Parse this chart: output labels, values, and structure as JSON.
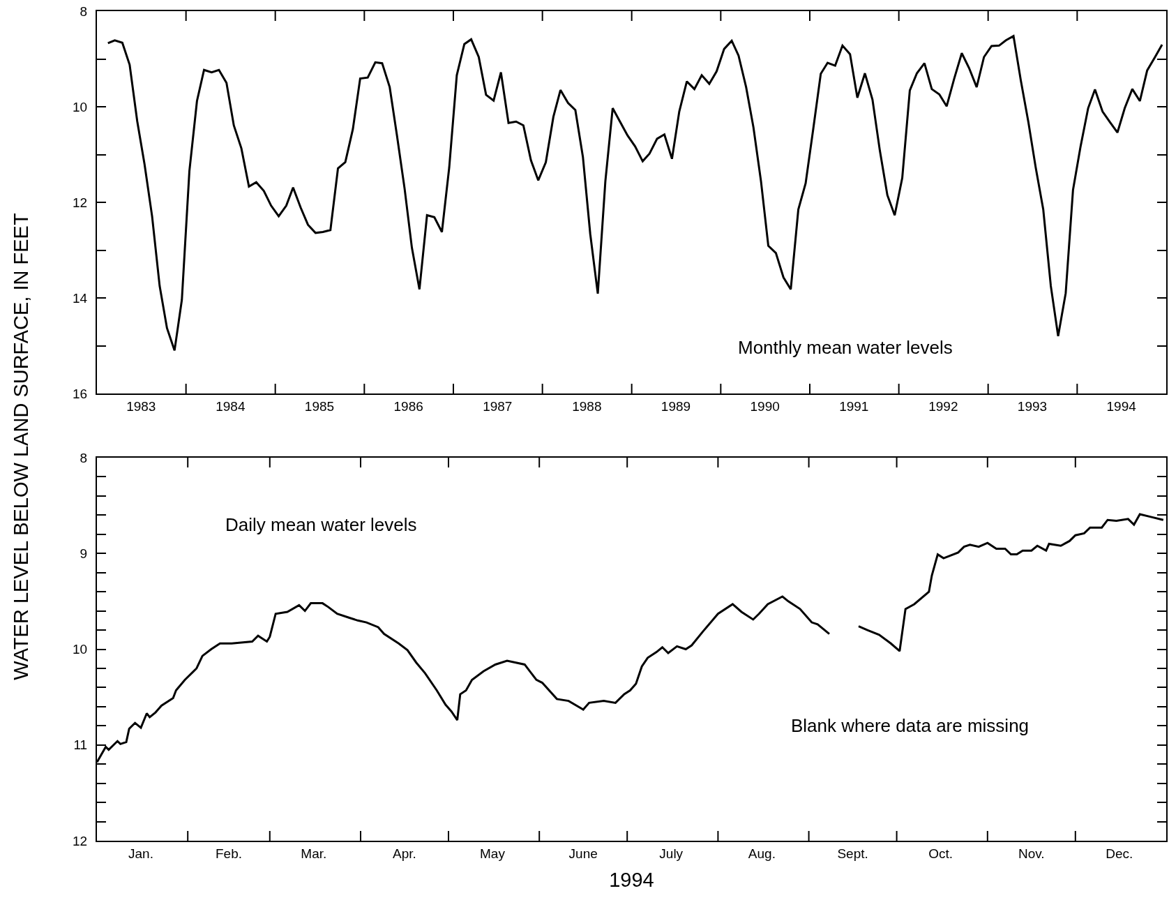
{
  "chart_data": [
    {
      "type": "line",
      "ylabel": "WATER LEVEL BELOW LAND SURFACE, IN FEET",
      "annotations": [
        "Monthly mean water levels"
      ],
      "line_style": "solid",
      "xlim": [
        "1983-01-01",
        "1995-01-01"
      ],
      "xticks": [
        {
          "value": "1984-01-01",
          "label": null
        },
        {
          "value": "1985-01-01",
          "label": null
        },
        {
          "value": "1986-01-01",
          "label": null
        },
        {
          "value": "1987-01-01",
          "label": null
        },
        {
          "value": "1988-01-01",
          "label": null
        },
        {
          "value": "1989-01-01",
          "label": null
        },
        {
          "value": "1990-01-01",
          "label": null
        },
        {
          "value": "1991-01-01",
          "label": null
        },
        {
          "value": "1992-01-01",
          "label": null
        },
        {
          "value": "1993-01-01",
          "label": null
        },
        {
          "value": "1994-01-01",
          "label": null
        },
        {
          "value": "1983-07-01",
          "label": "1983"
        },
        {
          "value": "1984-07-01",
          "label": "1984"
        },
        {
          "value": "1985-07-01",
          "label": "1985"
        },
        {
          "value": "1986-07-01",
          "label": "1986"
        },
        {
          "value": "1987-07-01",
          "label": "1987"
        },
        {
          "value": "1988-07-01",
          "label": "1988"
        },
        {
          "value": "1989-07-01",
          "label": "1989"
        },
        {
          "value": "1990-07-01",
          "label": "1990"
        },
        {
          "value": "1991-07-01",
          "label": "1991"
        },
        {
          "value": "1992-07-01",
          "label": "1992"
        },
        {
          "value": "1993-07-01",
          "label": "1993"
        },
        {
          "value": "1994-07-01",
          "label": "1994"
        }
      ],
      "ylim": [
        16,
        8
      ],
      "yticks": [
        8,
        {
          "value": 9,
          "label": null
        },
        10,
        {
          "value": 11,
          "label": null
        },
        12,
        {
          "value": 13,
          "label": null
        },
        14,
        {
          "value": 15,
          "label": null
        },
        16
      ],
      "x": [
        "1983-02-15",
        "1983-03-15",
        "1983-04-15",
        "1983-05-15",
        "1983-06-15",
        "1983-07-15",
        "1983-08-15",
        "1983-09-15",
        "1983-10-15",
        "1983-11-15",
        "1983-12-15",
        "1984-01-15",
        "1984-02-15",
        "1984-03-15",
        "1984-04-15",
        "1984-05-15",
        "1984-06-15",
        "1984-07-15",
        "1984-08-15",
        "1984-09-15",
        "1984-10-15",
        "1984-11-15",
        "1984-12-15",
        "1985-01-15",
        "1985-02-15",
        "1985-03-15",
        "1985-04-15",
        "1985-05-15",
        "1985-06-15",
        "1985-07-15",
        "1985-08-15",
        "1985-09-15",
        "1985-10-15",
        "1985-11-15",
        "1985-12-15",
        "1986-01-15",
        "1986-02-15",
        "1986-03-15",
        "1986-04-15",
        "1986-05-15",
        "1986-06-15",
        "1986-07-15",
        "1986-08-15",
        "1986-09-15",
        "1986-10-15",
        "1986-11-15",
        "1986-12-15",
        "1987-01-15",
        "1987-02-15",
        "1987-03-15",
        "1987-04-15",
        "1987-05-15",
        "1987-06-15",
        "1987-07-15",
        "1987-08-15",
        "1987-09-15",
        "1987-10-15",
        "1987-11-15",
        "1987-12-15",
        "1988-01-15",
        "1988-02-15",
        "1988-03-15",
        "1988-04-15",
        "1988-05-15",
        "1988-06-15",
        "1988-07-15",
        "1988-08-15",
        "1988-09-15",
        "1988-10-15",
        "1988-11-15",
        "1988-12-15",
        "1989-01-15",
        "1989-02-15",
        "1989-03-15",
        "1989-04-15",
        "1989-05-15",
        "1989-06-15",
        "1989-07-15",
        "1989-08-15",
        "1989-09-15",
        "1989-10-15",
        "1989-11-15",
        "1989-12-15",
        "1990-01-15",
        "1990-02-15",
        "1990-03-15",
        "1990-04-15",
        "1990-05-15",
        "1990-06-15",
        "1990-07-15",
        "1990-08-15",
        "1990-09-15",
        "1990-10-15",
        "1990-11-15",
        "1990-12-15",
        "1991-01-15",
        "1991-02-15",
        "1991-03-15",
        "1991-04-15",
        "1991-05-15",
        "1991-06-15",
        "1991-07-15",
        "1991-08-15",
        "1991-09-15",
        "1991-10-15",
        "1991-11-15",
        "1991-12-15",
        "1992-01-15",
        "1992-02-15",
        "1992-03-15",
        "1992-04-15",
        "1992-05-15",
        "1992-06-15",
        "1992-07-15",
        "1992-08-15",
        "1992-09-15",
        "1992-10-15",
        "1992-11-15",
        "1992-12-15",
        "1993-01-15",
        "1993-02-15",
        "1993-03-15",
        "1993-04-15",
        "1993-05-15",
        "1993-06-15",
        "1993-07-15",
        "1993-08-15",
        "1993-09-15",
        "1993-10-15",
        "1993-11-15",
        "1993-12-15",
        "1994-01-15",
        "1994-02-15",
        "1994-03-15",
        "1994-04-15",
        "1994-05-15",
        "1994-06-15",
        "1994-07-15",
        "1994-08-15",
        "1994-09-15",
        "1994-10-15",
        "1994-11-15",
        "1994-12-15"
      ],
      "series": [
        {
          "color": "#000000",
          "values": [
            8.67,
            8.61,
            8.66,
            9.12,
            10.3,
            11.2,
            12.29,
            13.75,
            14.63,
            15.1,
            14.04,
            11.34,
            9.88,
            9.23,
            9.28,
            9.23,
            9.5,
            10.39,
            10.87,
            11.67,
            11.58,
            11.76,
            12.07,
            12.29,
            12.07,
            11.69,
            12.11,
            12.47,
            12.64,
            12.62,
            12.58,
            11.29,
            11.16,
            10.47,
            9.41,
            9.39,
            9.07,
            9.09,
            9.59,
            10.61,
            11.71,
            12.95,
            13.82,
            12.27,
            12.31,
            12.62,
            11.27,
            9.34,
            8.69,
            8.59,
            8.96,
            9.75,
            9.87,
            9.28,
            10.34,
            10.31,
            10.39,
            11.12,
            11.54,
            11.16,
            10.21,
            9.65,
            9.92,
            10.07,
            11.05,
            12.66,
            13.91,
            11.56,
            10.03,
            10.32,
            10.6,
            10.83,
            11.14,
            10.98,
            10.67,
            10.58,
            11.09,
            10.1,
            9.47,
            9.63,
            9.34,
            9.52,
            9.26,
            8.79,
            8.62,
            8.93,
            9.59,
            10.43,
            11.56,
            12.91,
            13.06,
            13.57,
            13.82,
            12.15,
            11.6,
            10.47,
            9.31,
            9.08,
            9.14,
            8.72,
            8.9,
            9.81,
            9.3,
            9.85,
            10.91,
            11.85,
            12.27,
            11.49,
            9.66,
            9.3,
            9.09,
            9.63,
            9.74,
            9.99,
            9.41,
            8.88,
            9.19,
            9.59,
            8.96,
            8.73,
            8.72,
            8.61,
            8.52,
            9.45,
            10.32,
            11.27,
            12.15,
            13.75,
            14.8,
            13.9,
            11.74,
            10.83,
            10.03,
            9.64,
            10.1,
            10.32,
            10.54,
            10.03,
            9.63,
            9.88,
            9.24,
            8.97,
            8.7
          ]
        }
      ]
    },
    {
      "type": "line",
      "xlabel": "1994",
      "annotations": [
        "Daily mean water levels",
        "Blank where data are missing"
      ],
      "line_style": "solid",
      "xlim": [
        "1994-01-01",
        "1995-01-01"
      ],
      "xticks": [
        {
          "value": "1994-02-01",
          "label": null
        },
        {
          "value": "1994-03-01",
          "label": null
        },
        {
          "value": "1994-04-01",
          "label": null
        },
        {
          "value": "1994-05-01",
          "label": null
        },
        {
          "value": "1994-06-01",
          "label": null
        },
        {
          "value": "1994-07-01",
          "label": null
        },
        {
          "value": "1994-08-01",
          "label": null
        },
        {
          "value": "1994-09-01",
          "label": null
        },
        {
          "value": "1994-10-01",
          "label": null
        },
        {
          "value": "1994-11-01",
          "label": null
        },
        {
          "value": "1994-12-01",
          "label": null
        },
        {
          "value": "1994-01-16",
          "label": "Jan."
        },
        {
          "value": "1994-02-15",
          "label": "Feb."
        },
        {
          "value": "1994-03-16",
          "label": "Mar."
        },
        {
          "value": "1994-04-16",
          "label": "Apr."
        },
        {
          "value": "1994-05-16",
          "label": "May"
        },
        {
          "value": "1994-06-16",
          "label": "June"
        },
        {
          "value": "1994-07-16",
          "label": "July"
        },
        {
          "value": "1994-08-16",
          "label": "Aug."
        },
        {
          "value": "1994-09-16",
          "label": "Sept."
        },
        {
          "value": "1994-10-16",
          "label": "Oct."
        },
        {
          "value": "1994-11-16",
          "label": "Nov."
        },
        {
          "value": "1994-12-16",
          "label": "Dec."
        }
      ],
      "ylim": [
        12,
        8
      ],
      "yticks": [
        8,
        {
          "value": 8.2,
          "label": null
        },
        {
          "value": 8.4,
          "label": null
        },
        {
          "value": 8.6,
          "label": null
        },
        {
          "value": 8.8,
          "label": null
        },
        9,
        {
          "value": 9.2,
          "label": null
        },
        {
          "value": 9.4,
          "label": null
        },
        {
          "value": 9.6,
          "label": null
        },
        {
          "value": 9.8,
          "label": null
        },
        10,
        {
          "value": 10.2,
          "label": null
        },
        {
          "value": 10.4,
          "label": null
        },
        {
          "value": 10.6,
          "label": null
        },
        {
          "value": 10.8,
          "label": null
        },
        11,
        {
          "value": 11.2,
          "label": null
        },
        {
          "value": 11.4,
          "label": null
        },
        {
          "value": 11.6,
          "label": null
        },
        {
          "value": 11.8,
          "label": null
        },
        12
      ],
      "x": [
        "1994-01-01",
        "1994-01-04",
        "1994-01-05",
        "1994-01-08",
        "1994-01-09",
        "1994-01-11",
        "1994-01-12",
        "1994-01-14",
        "1994-01-16",
        "1994-01-18",
        "1994-01-19",
        "1994-01-21",
        "1994-01-23",
        "1994-01-27",
        "1994-01-28",
        "1994-01-31",
        "1994-02-03",
        "1994-02-04",
        "1994-02-06",
        "1994-02-09",
        "1994-02-12",
        "1994-02-16",
        "1994-02-23",
        "1994-02-25",
        "1994-02-26",
        "1994-02-28",
        "1994-03-01",
        "1994-03-03",
        "1994-03-07",
        "1994-03-11",
        "1994-03-13",
        "1994-03-15",
        "1994-03-19",
        "1994-03-21",
        "1994-03-24",
        "1994-03-28",
        "1994-03-31",
        "1994-04-03",
        "1994-04-07",
        "1994-04-09",
        "1994-04-14",
        "1994-04-17",
        "1994-04-20",
        "1994-04-23",
        "1994-04-27",
        "1994-04-30",
        "1994-05-02",
        "1994-05-04",
        "1994-05-05",
        "1994-05-07",
        "1994-05-09",
        "1994-05-13",
        "1994-05-17",
        "1994-05-21",
        "1994-05-27",
        "1994-05-31",
        "1994-06-02",
        "1994-06-07",
        "1994-06-11",
        "1994-06-16",
        "1994-06-18",
        "1994-06-23",
        "1994-06-27",
        "1994-06-30",
        "1994-07-02",
        "1994-07-04",
        "1994-07-06",
        "1994-07-08",
        "1994-07-11",
        "1994-07-13",
        "1994-07-15",
        "1994-07-18",
        "1994-07-21",
        "1994-07-23",
        "1994-07-27",
        "1994-08-01",
        "1994-08-06",
        "1994-08-09",
        "1994-08-13",
        "1994-08-15",
        "1994-08-18",
        "1994-08-23",
        "1994-08-25",
        "1994-08-29",
        "1994-09-02",
        "1994-09-04",
        "1994-09-08",
        "1994-09-13",
        "1994-09-18",
        "1994-09-21",
        "1994-09-25",
        "1994-09-29",
        "1994-10-02",
        "1994-10-04",
        "1994-10-07",
        "1994-10-12",
        "1994-10-13",
        "1994-10-15",
        "1994-10-17",
        "1994-10-22",
        "1994-10-24",
        "1994-10-26",
        "1994-10-29",
        "1994-11-01",
        "1994-11-04",
        "1994-11-07",
        "1994-11-09",
        "1994-11-11",
        "1994-11-13",
        "1994-11-16",
        "1994-11-18",
        "1994-11-21",
        "1994-11-22",
        "1994-11-26",
        "1994-11-29",
        "1994-12-01",
        "1994-12-04",
        "1994-12-06",
        "1994-12-10",
        "1994-12-12",
        "1994-12-15",
        "1994-12-19",
        "1994-12-21",
        "1994-12-23",
        "1994-12-27",
        "1994-12-31"
      ],
      "series": [
        {
          "color": "#000000",
          "values": [
            11.18,
            11.02,
            11.05,
            10.96,
            10.99,
            10.97,
            10.83,
            10.77,
            10.82,
            10.67,
            10.71,
            10.66,
            10.59,
            10.51,
            10.43,
            10.32,
            10.23,
            10.2,
            10.07,
            10.0,
            9.94,
            9.94,
            9.92,
            9.86,
            9.88,
            9.92,
            9.87,
            9.63,
            9.61,
            9.54,
            9.6,
            9.52,
            9.52,
            9.56,
            9.63,
            9.67,
            9.7,
            9.72,
            9.77,
            9.84,
            9.94,
            10.01,
            10.14,
            10.25,
            10.43,
            10.58,
            10.65,
            10.74,
            10.47,
            10.43,
            10.32,
            10.23,
            10.16,
            10.12,
            10.16,
            10.32,
            10.35,
            10.52,
            10.54,
            10.63,
            10.56,
            10.54,
            10.56,
            10.47,
            10.43,
            10.36,
            10.18,
            10.09,
            10.03,
            9.98,
            10.04,
            9.97,
            10.0,
            9.96,
            9.81,
            9.63,
            9.53,
            9.61,
            9.69,
            9.63,
            9.53,
            9.45,
            9.5,
            9.58,
            9.72,
            9.74,
            9.84,
            null,
            9.76,
            9.8,
            9.85,
            9.94,
            10.02,
            9.58,
            9.53,
            9.4,
            9.23,
            9.01,
            9.05,
            8.99,
            8.93,
            8.91,
            8.93,
            8.89,
            8.95,
            8.95,
            9.01,
            9.01,
            8.97,
            8.97,
            8.92,
            8.97,
            8.9,
            8.92,
            8.87,
            8.81,
            8.79,
            8.73,
            8.73,
            8.65,
            8.66,
            8.64,
            8.7,
            8.59,
            8.62,
            8.65
          ]
        }
      ]
    }
  ]
}
